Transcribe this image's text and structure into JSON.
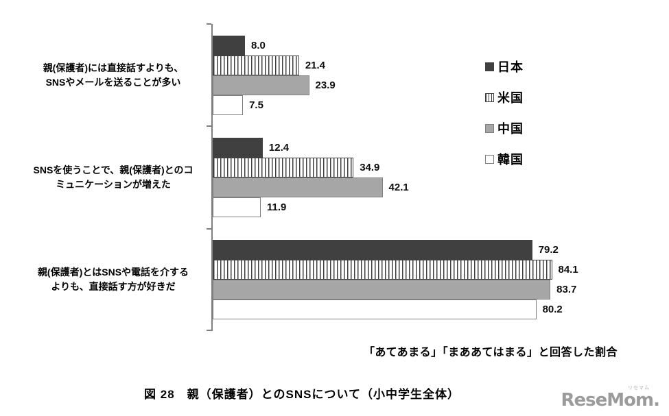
{
  "chart_data": {
    "type": "bar",
    "orientation": "horizontal",
    "categories": [
      [
        "親(保護者)には直接話すよりも、",
        "SNSやメールを送ることが多い"
      ],
      [
        "SNSを使うことで、親(保護者)とのコ",
        "ミュニケーションが増えた"
      ],
      [
        "親(保護者)とはSNSや電話を介する",
        "よりも、直接話す方が好きだ"
      ]
    ],
    "series": [
      {
        "name": "日本",
        "values": [
          8.0,
          12.4,
          79.2
        ],
        "pattern": "solid",
        "fill": "#404040",
        "stripe": "#404040",
        "border": "#404040"
      },
      {
        "name": "米国",
        "values": [
          21.4,
          34.9,
          84.1
        ],
        "pattern": "vstripes",
        "fill": "#ffffff",
        "stripe": "#404040",
        "border": "#404040"
      },
      {
        "name": "中国",
        "values": [
          23.9,
          42.1,
          83.7
        ],
        "pattern": "solid",
        "fill": "#a6a6a6",
        "stripe": "#a6a6a6",
        "border": "#7f7f7f"
      },
      {
        "name": "韓国",
        "values": [
          7.5,
          11.9,
          80.2
        ],
        "pattern": "solid",
        "fill": "#ffffff",
        "stripe": "#ffffff",
        "border": "#7f7f7f"
      }
    ],
    "xlim": [
      0,
      100
    ],
    "grid": false,
    "legend_position": "right",
    "axis_color": "#7f7f7f",
    "value_labels": true,
    "value_decimals": 1
  },
  "footnote": "「あてあまる」「まああてはまる」と回答した割合",
  "caption": "図 28　親（保護者）とのSNSについて（小中学生全体）",
  "logo": {
    "text": "ReseMom.",
    "ruby": "リセマム"
  }
}
